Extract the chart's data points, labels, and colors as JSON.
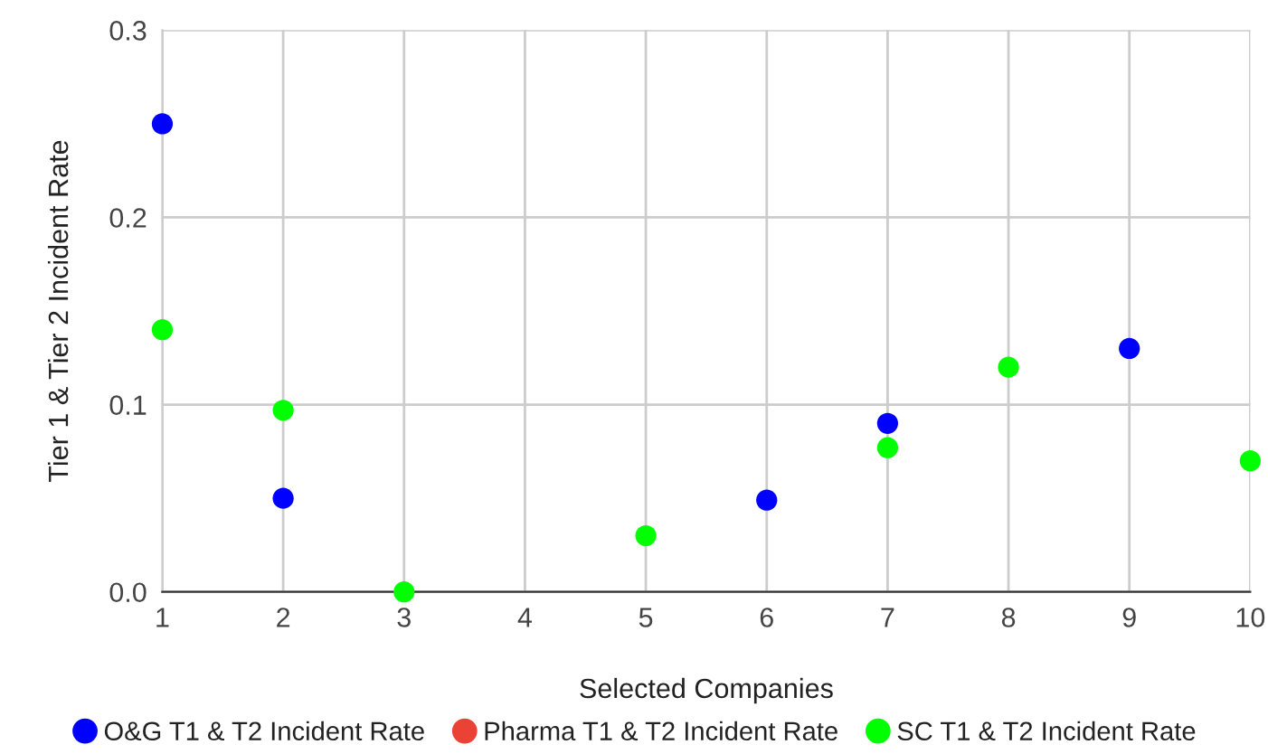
{
  "chart_data": {
    "type": "scatter",
    "xlabel": "Selected Companies",
    "ylabel": "Tier 1 & Tier 2 Incident Rate",
    "xlim": [
      1,
      10
    ],
    "xticks": [
      1,
      2,
      3,
      4,
      5,
      6,
      7,
      8,
      9,
      10
    ],
    "ylim": [
      0,
      0.3
    ],
    "yticks": [
      {
        "value": 0,
        "label": "0.0"
      },
      0.1,
      0.2,
      0.3
    ],
    "grid": true,
    "legend": "bottom",
    "marker": "circle",
    "series": [
      {
        "name": "O&G T1 & T2 Incident Rate",
        "color": "#0000ff",
        "x": [
          1,
          2,
          6,
          7,
          9
        ],
        "values": [
          0.25,
          0.05,
          0.049,
          0.09,
          0.13
        ]
      },
      {
        "name": "Pharma T1 & T2 Incident Rate",
        "color": "#ea4335"
      },
      {
        "name": "SC T1 & T2 Incident Rate",
        "color": "#00ff00",
        "x": [
          1,
          2,
          3,
          5,
          7,
          8,
          10
        ],
        "values": [
          0.14,
          0.097,
          0,
          0.03,
          0.077,
          0.12,
          0.07
        ]
      }
    ]
  }
}
